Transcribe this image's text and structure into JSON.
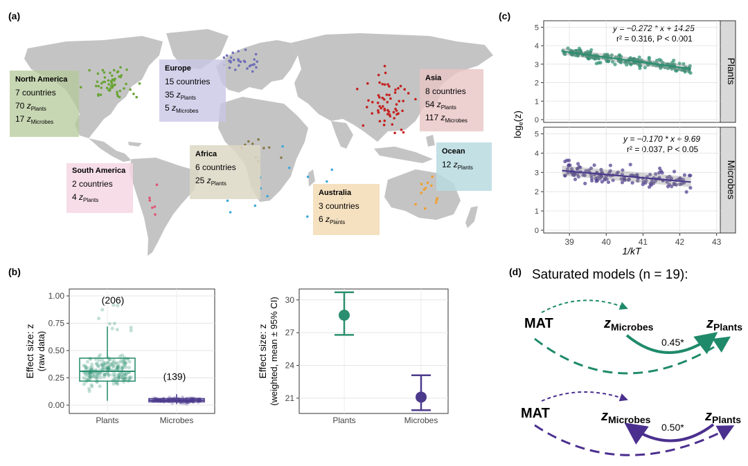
{
  "panels": {
    "a": {
      "tag": "(a)",
      "regions": [
        {
          "name": "North America",
          "lines": [
            [
              "7 countries",
              ""
            ],
            [
              "70 ",
              "z",
              "Plants"
            ],
            [
              "17 ",
              "z",
              "Microbes"
            ]
          ],
          "color": "#b5c99a"
        },
        {
          "name": "Europe",
          "lines": [
            [
              "15 countries",
              ""
            ],
            [
              "35 ",
              "z",
              "Plants"
            ],
            [
              "5  ",
              "z",
              "Microbes"
            ]
          ],
          "color": "#c9c7e6"
        },
        {
          "name": "Asia",
          "lines": [
            [
              "8 countries",
              ""
            ],
            [
              "54 ",
              "z",
              "Plants"
            ],
            [
              "117 ",
              "z",
              "Microbes"
            ]
          ],
          "color": "#e8c4c4"
        },
        {
          "name": "South America",
          "lines": [
            [
              "2 countries",
              ""
            ],
            [
              "4 ",
              "z",
              "Plants"
            ]
          ],
          "color": "#f5d7e3"
        },
        {
          "name": "Africa",
          "lines": [
            [
              "6 countries",
              ""
            ],
            [
              "25 ",
              "z",
              "Plants"
            ]
          ],
          "color": "#ddd8c6"
        },
        {
          "name": "Australia",
          "lines": [
            [
              "3 countries",
              ""
            ],
            [
              "6 ",
              "z",
              "Plants"
            ]
          ],
          "color": "#f3dcb5"
        },
        {
          "name": "Ocean",
          "lines": [
            [
              "12 ",
              "z",
              "Plants"
            ]
          ],
          "color": "#b9dbe0"
        }
      ]
    },
    "b": {
      "tag": "(b)",
      "left": {
        "ylabel1": "Effect size: z",
        "ylabel2": "(raw data)",
        "yticks": [
          "0.00",
          "0.25",
          "0.50",
          "0.75",
          "1.00"
        ],
        "categories": [
          "Plants",
          "Microbes"
        ],
        "counts": [
          "(206)",
          "(139)"
        ]
      },
      "right": {
        "ylabel1": "Effect size: z",
        "ylabel2": "(weighted, mean ± 95% CI)",
        "yticks": [
          "21",
          "24",
          "27",
          "30"
        ],
        "categories": [
          "Plants",
          "Microbes"
        ]
      }
    },
    "c": {
      "tag": "(c)",
      "xlabel": "1/kT",
      "ylabel": "log",
      "ylabel_sub": "e",
      "ylabel_tail": "(z)",
      "xticks": [
        "39",
        "40",
        "41",
        "42",
        "43"
      ],
      "yticks": [
        "0",
        "1",
        "2",
        "3",
        "4",
        "5"
      ],
      "strips": [
        "Plants",
        "Microbes"
      ],
      "eq_plants": "y = −0.272 * x + 14.25",
      "r2_plants": "r² = 0.316, P < 0.001",
      "eq_microbes": "y = −0.170 * x + 9.69",
      "r2_microbes": "r² = 0.037, P < 0.05"
    },
    "d": {
      "tag": "(d)",
      "title": "Saturated models (n = 19):",
      "mat": "MAT",
      "zm": "Microbes",
      "zp": "Plants",
      "coef_top": "0.45*",
      "coef_bottom": "0.50*"
    }
  },
  "chart_data": [
    {
      "type": "box",
      "title": "",
      "xlabel": "",
      "ylabel": "Effect size: z (raw data)",
      "categories": [
        "Plants",
        "Microbes"
      ],
      "ylim": [
        0,
        1.0
      ],
      "boxes": [
        {
          "name": "Plants",
          "n": 206,
          "min": 0.04,
          "q1": 0.22,
          "median": 0.31,
          "q3": 0.43,
          "max": 0.72,
          "color": "#2a8f6f"
        },
        {
          "name": "Microbes",
          "n": 139,
          "min": 0.01,
          "q1": 0.03,
          "median": 0.045,
          "q3": 0.06,
          "max": 0.1,
          "color": "#4b3a8c"
        }
      ]
    },
    {
      "type": "errorbar",
      "ylabel": "Effect size: z (weighted, mean ± 95% CI)",
      "categories": [
        "Plants",
        "Microbes"
      ],
      "ylim": [
        19.6,
        31.0
      ],
      "series": [
        {
          "name": "Plants",
          "mean": 28.6,
          "lower": 26.8,
          "upper": 30.7,
          "color": "#2a8f6f"
        },
        {
          "name": "Microbes",
          "mean": 21.1,
          "lower": 19.9,
          "upper": 23.1,
          "color": "#4b3a8c"
        }
      ]
    },
    {
      "type": "scatter",
      "facet": "Plants",
      "xlabel": "1/kT",
      "ylabel": "loge(z)",
      "xlim": [
        38.3,
        43.1
      ],
      "ylim": [
        0,
        5.2
      ],
      "fit": {
        "slope": -0.272,
        "intercept": 14.25
      },
      "color": "#2a8f6f"
    },
    {
      "type": "scatter",
      "facet": "Microbes",
      "xlabel": "1/kT",
      "ylabel": "loge(z)",
      "xlim": [
        38.3,
        43.1
      ],
      "ylim": [
        0,
        5.2
      ],
      "fit": {
        "slope": -0.17,
        "intercept": 9.69
      },
      "color": "#4b3a8c"
    }
  ]
}
